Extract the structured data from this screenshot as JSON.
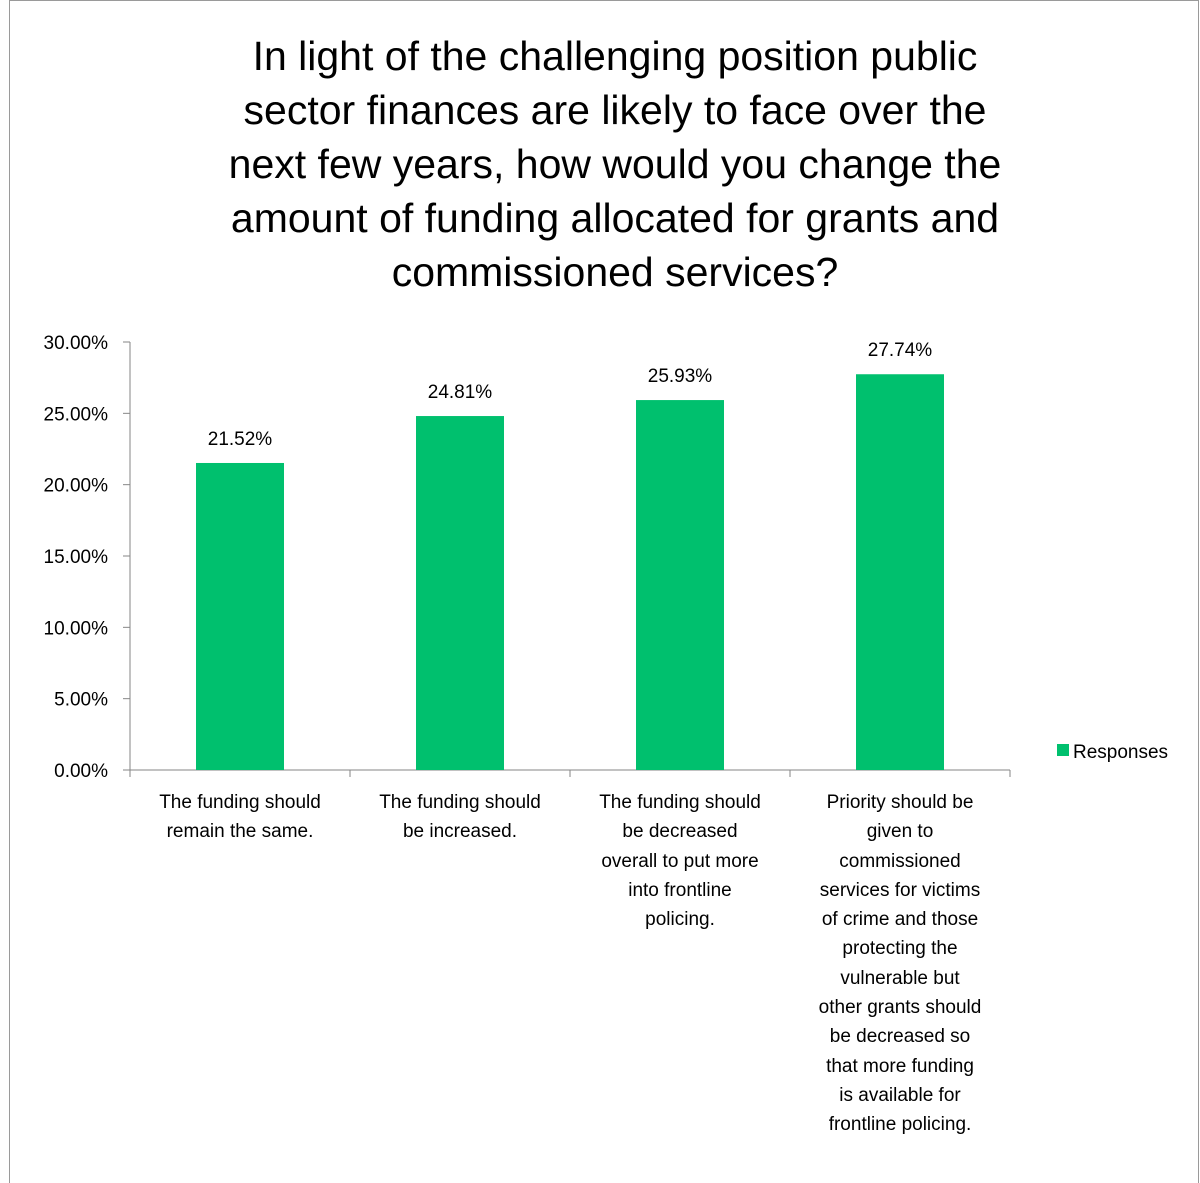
{
  "chart_data": {
    "type": "bar",
    "title_lines": [
      "In light of the challenging position public",
      "sector finances are likely to face over the",
      "next few years, how would you change the",
      "amount of funding allocated for grants and",
      "commissioned services?"
    ],
    "categories": [
      [
        "The funding should",
        "remain the same."
      ],
      [
        "The funding should",
        "be increased."
      ],
      [
        "The funding should",
        "be decreased",
        "overall to put more",
        "into frontline",
        "policing."
      ],
      [
        "Priority should be",
        "given to",
        "commissioned",
        "services for victims",
        "of crime and those",
        "protecting the",
        "vulnerable but",
        "other grants should",
        "be decreased so",
        "that more funding",
        "is available for",
        "frontline policing."
      ]
    ],
    "series": [
      {
        "name": "Responses",
        "color": "#00c06e",
        "values": [
          21.52,
          24.81,
          25.93,
          27.74
        ],
        "data_labels": [
          "21.52%",
          "24.81%",
          "25.93%",
          "27.74%"
        ]
      }
    ],
    "ylim": [
      0,
      30
    ],
    "y_ticks": [
      0,
      5,
      10,
      15,
      20,
      25,
      30
    ],
    "y_tick_labels": [
      "0.00%",
      "5.00%",
      "10.00%",
      "15.00%",
      "20.00%",
      "25.00%",
      "30.00%"
    ],
    "grid": false,
    "legend_position": "right"
  }
}
